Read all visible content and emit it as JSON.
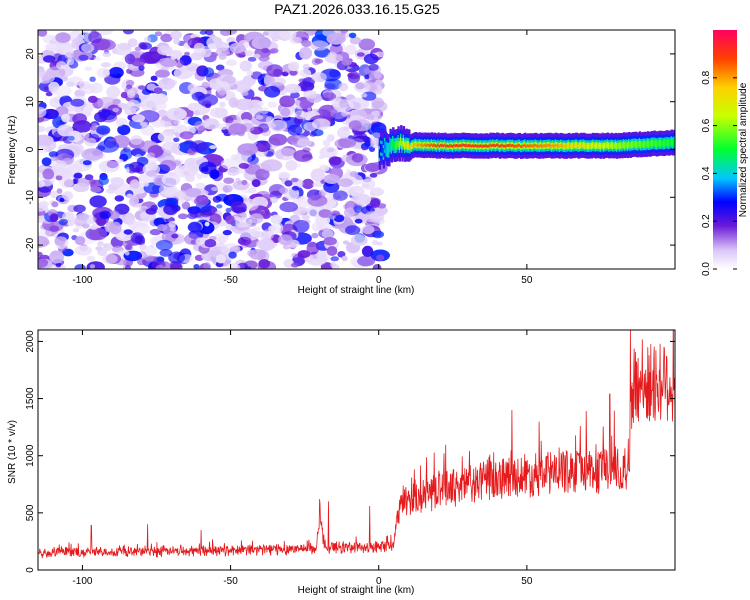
{
  "figure": {
    "title": "PAZ1.2026.033.16.15.G25",
    "colors": {
      "axis": "#000000",
      "snr_line": "#e41a1c",
      "background": "#ffffff"
    }
  },
  "chart_data": [
    {
      "type": "heatmap",
      "name": "spectrogram",
      "xlabel": "Height of straight line (km)",
      "ylabel": "Frequency (Hz)",
      "xlim": [
        -115,
        100
      ],
      "ylim": [
        -25,
        25
      ],
      "xticks": [
        -100,
        -50,
        0,
        50
      ],
      "yticks": [
        -20,
        -10,
        0,
        10,
        20
      ],
      "noise_region_x": [
        -115,
        0
      ],
      "signal_ridge": [
        {
          "x": 0,
          "y": -0.5,
          "amplitude": 0.25
        },
        {
          "x": 3,
          "y": 0.5,
          "amplitude": 0.4
        },
        {
          "x": 6,
          "y": 1.5,
          "amplitude": 0.55
        },
        {
          "x": 10,
          "y": 1.0,
          "amplitude": 0.75
        },
        {
          "x": 20,
          "y": 0.8,
          "amplitude": 0.9
        },
        {
          "x": 40,
          "y": 0.8,
          "amplitude": 0.9
        },
        {
          "x": 60,
          "y": 0.8,
          "amplitude": 0.8
        },
        {
          "x": 80,
          "y": 0.8,
          "amplitude": 0.6
        },
        {
          "x": 100,
          "y": 1.5,
          "amplitude": 0.5
        }
      ],
      "colorbar": {
        "label": "Normalized spectral amplitude",
        "range": [
          0,
          1
        ],
        "ticks": [
          0.0,
          0.2,
          0.4,
          0.6,
          0.8
        ],
        "tick_labels": [
          "0.0",
          "0.2",
          "0.4",
          "0.6",
          "0.8"
        ]
      }
    },
    {
      "type": "line",
      "name": "snr",
      "xlabel": "Height of straight line (km)",
      "ylabel": "SNR (10 * v/v)",
      "xlim": [
        -115,
        100
      ],
      "ylim": [
        0,
        2100
      ],
      "xticks": [
        -100,
        -50,
        0,
        50
      ],
      "yticks": [
        0,
        500,
        1000,
        1500,
        2000
      ],
      "series": [
        {
          "name": "SNR",
          "color": "#e41a1c",
          "trend_points": [
            {
              "x": -115,
              "y": 150
            },
            {
              "x": -60,
              "y": 170
            },
            {
              "x": -21,
              "y": 190
            },
            {
              "x": -20,
              "y": 450
            },
            {
              "x": -18,
              "y": 200
            },
            {
              "x": -5,
              "y": 200
            },
            {
              "x": 5,
              "y": 200
            },
            {
              "x": 6,
              "y": 420
            },
            {
              "x": 8,
              "y": 600
            },
            {
              "x": 20,
              "y": 700
            },
            {
              "x": 40,
              "y": 800
            },
            {
              "x": 60,
              "y": 860
            },
            {
              "x": 84,
              "y": 880
            },
            {
              "x": 86,
              "y": 1600
            },
            {
              "x": 100,
              "y": 1650
            }
          ],
          "spikes": [
            {
              "x": -97,
              "y": 390
            },
            {
              "x": -78,
              "y": 400
            },
            {
              "x": -60,
              "y": 350
            },
            {
              "x": -20,
              "y": 620
            },
            {
              "x": -17,
              "y": 600
            },
            {
              "x": -3,
              "y": 560
            },
            {
              "x": 12,
              "y": 880
            },
            {
              "x": 22,
              "y": 1020
            },
            {
              "x": 45,
              "y": 1400
            },
            {
              "x": 68,
              "y": 1260
            },
            {
              "x": 70,
              "y": 1390
            },
            {
              "x": 78,
              "y": 1540
            },
            {
              "x": 85,
              "y": 2100
            },
            {
              "x": 95,
              "y": 1980
            }
          ]
        }
      ]
    }
  ]
}
